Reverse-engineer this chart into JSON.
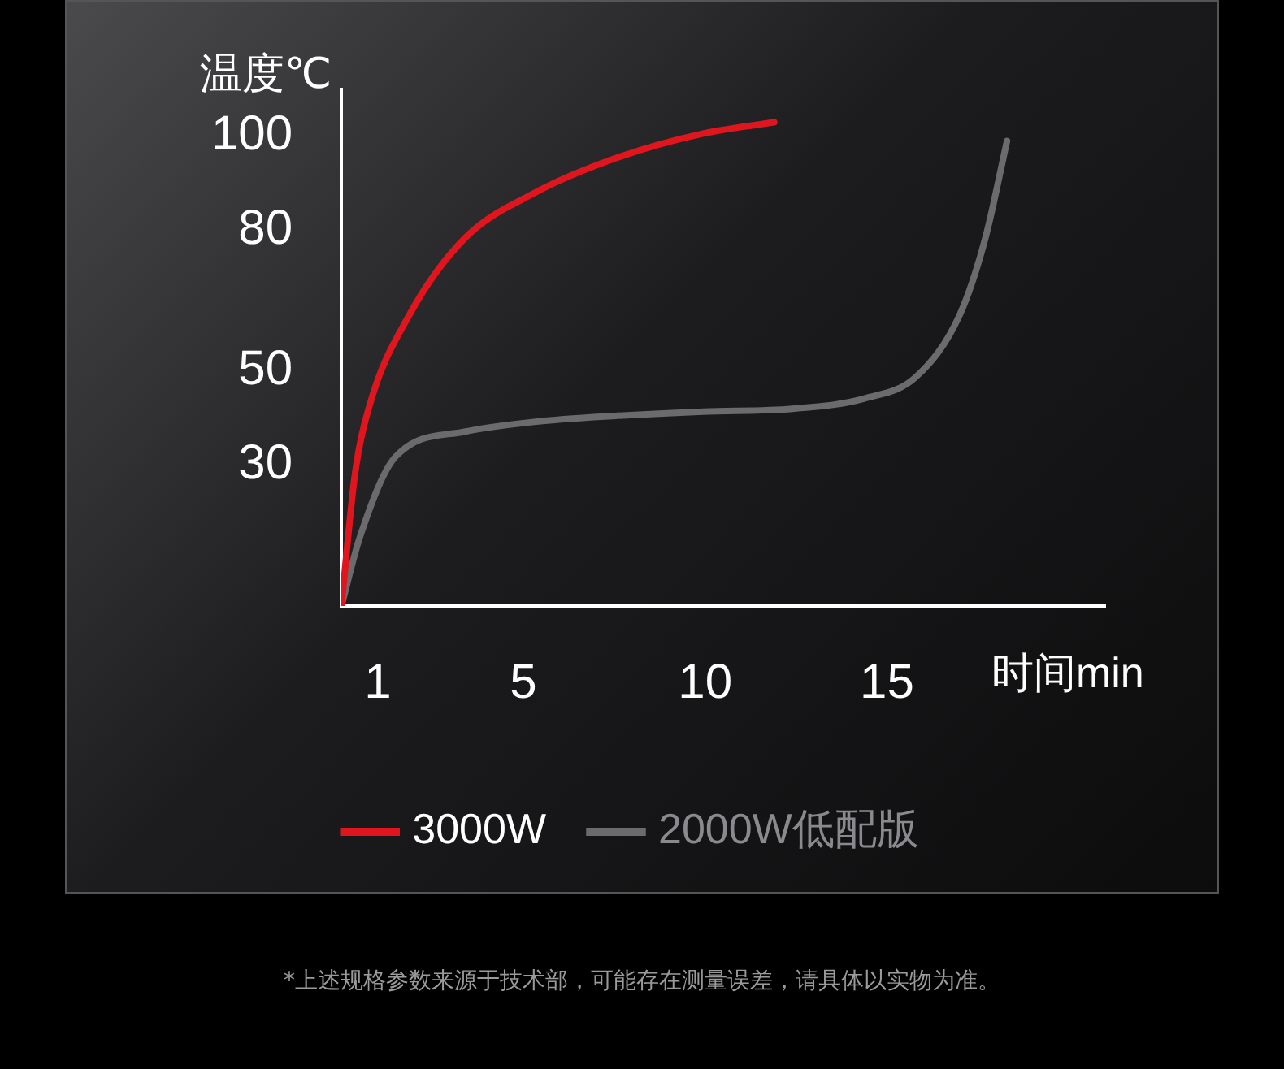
{
  "chart_data": {
    "type": "line",
    "xlabel": "时间min",
    "ylabel": "温度℃",
    "xlim": [
      0,
      21
    ],
    "ylim": [
      0,
      110
    ],
    "xticks": [
      1,
      5,
      10,
      15
    ],
    "yticks": [
      30,
      50,
      80,
      100
    ],
    "grid": false,
    "legend": "bottom",
    "marker": "none",
    "line_style": "solid",
    "series": [
      {
        "name": "3000W",
        "color": "#e0161e",
        "x": [
          0,
          0.37,
          0.77,
          1.87,
          3.38,
          5.3,
          7.6,
          9.95,
          11.9
        ],
        "values": [
          0,
          27.9,
          42.6,
          62,
          78.2,
          87.9,
          95.5,
          100.6,
          103
        ]
      },
      {
        "name": "2000W低配版",
        "color": "#6b6b6e",
        "x": [
          0,
          0.51,
          1.49,
          3.38,
          5.3,
          7.6,
          9.95,
          12.4,
          14.4,
          15.8,
          17,
          17.7,
          18.3
        ],
        "values": [
          0,
          14.7,
          31.8,
          37.1,
          39.2,
          40.5,
          41.4,
          42,
          44.2,
          48.8,
          62,
          78.2,
          99
        ]
      }
    ],
    "annotations": [
      "*上述规格参数来源于技术部，可能存在测量误差，请具体以实物为准。"
    ]
  }
}
